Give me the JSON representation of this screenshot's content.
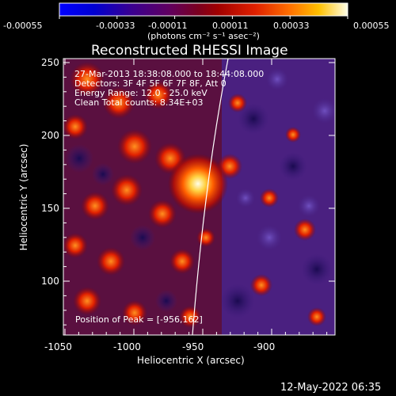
{
  "colorbar": {
    "ticks": [
      "-0.00055",
      "-0.00033",
      "-0.00011",
      "0.00011",
      "0.00033",
      "0.00055"
    ],
    "unit_label": "(photons cm⁻² s⁻¹ asec⁻²)"
  },
  "plot": {
    "title": "Reconstructed RHESSI Image",
    "xlabel": "Heliocentric X (arcsec)",
    "ylabel": "Heliocentric Y (arcsec)",
    "xticks": [
      "-1050",
      "-1000",
      "-950",
      "-900"
    ],
    "yticks": [
      "250",
      "200",
      "150",
      "100"
    ]
  },
  "info": {
    "time_range": "27-Mar-2013 18:38:08.000 to 18:44:08.000",
    "detectors": "Detectors: 3F 4F 5F 6F 7F 8F, Att 0",
    "energy_range": "Energy Range: 12.0 - 25.0 keV",
    "clean_counts": "Clean     Total counts: 8.34E+03",
    "peak_position": "Position of Peak = [-956,162]"
  },
  "footer": {
    "timestamp": "12-May-2022 06:35"
  },
  "colors": {
    "background": "#000000",
    "axis": "#ffffff",
    "low": "#3a1a7a",
    "mid": "#cc2200",
    "high": "#ffffe0"
  }
}
